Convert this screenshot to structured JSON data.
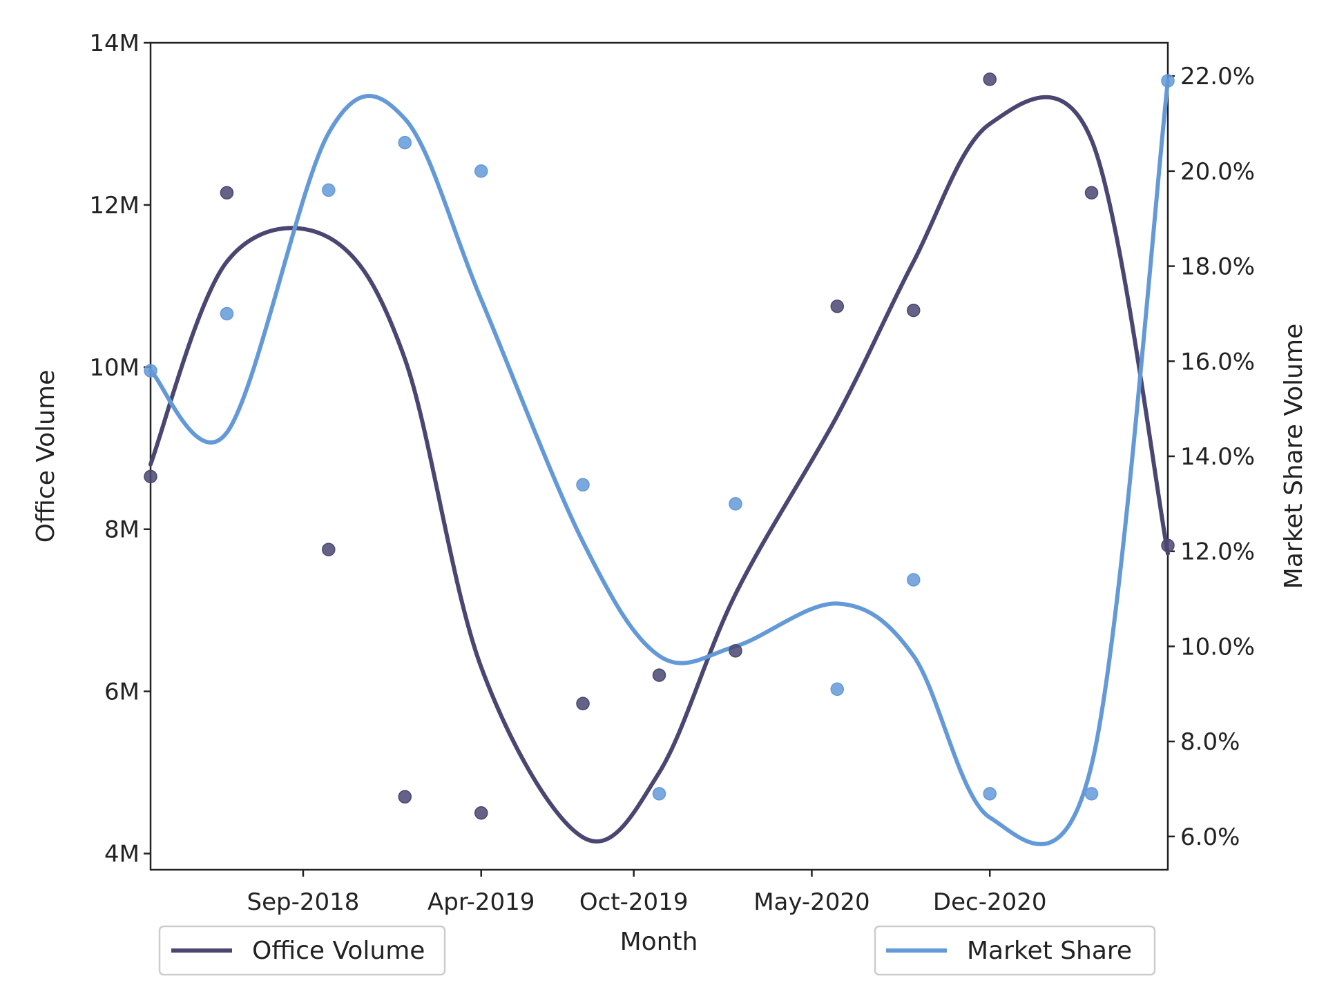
{
  "chart_data": {
    "type": "line",
    "title": "",
    "xlabel": "Month",
    "ylabel": "Office Volume",
    "y2label": "Market Share Volume",
    "x": [
      "Mar-2018",
      "Jun-2018",
      "Oct-2018",
      "Jan-2019",
      "Apr-2019",
      "Aug-2019",
      "Nov-2019",
      "Feb-2020",
      "Jun-2020",
      "Sep-2020",
      "Dec-2020",
      "Apr-2021",
      "Jul-2021"
    ],
    "xticks": [
      "Sep-2018",
      "Apr-2019",
      "Oct-2019",
      "May-2020",
      "Dec-2020"
    ],
    "yticks": [
      "4M",
      "6M",
      "8M",
      "10M",
      "12M",
      "14M"
    ],
    "y2ticks": [
      "6.0%",
      "8.0%",
      "10.0%",
      "12.0%",
      "14.0%",
      "16.0%",
      "18.0%",
      "20.0%",
      "22.0%"
    ],
    "ylim": [
      3800000,
      14000000
    ],
    "y2lim": [
      5.3,
      22.7
    ],
    "series": [
      {
        "name": "Office Volume",
        "axis": "left",
        "color": "#4a4672",
        "points": [
          8650000,
          12150000,
          7750000,
          4700000,
          4500000,
          5850000,
          6200000,
          6500000,
          10750000,
          10700000,
          13550000,
          12150000,
          7800000
        ],
        "smoothed": [
          8800000,
          11300000,
          11600000,
          10100000,
          6300000,
          4200000,
          5000000,
          7200000,
          9400000,
          11300000,
          13000000,
          12800000,
          7700000
        ]
      },
      {
        "name": "Market Share",
        "axis": "right",
        "color": "#6499d8",
        "points": [
          15.8,
          17.0,
          19.6,
          20.6,
          20.0,
          13.4,
          6.9,
          13.0,
          9.1,
          11.4,
          6.9,
          6.9,
          21.9
        ],
        "smoothed": [
          15.8,
          14.5,
          20.8,
          21.1,
          17.3,
          12.2,
          9.8,
          10.0,
          10.9,
          9.8,
          6.4,
          7.5,
          21.9
        ]
      }
    ],
    "legend": [
      {
        "label": "Office Volume",
        "placement": "bottom-left"
      },
      {
        "label": "Market Share",
        "placement": "bottom-right"
      }
    ],
    "grid": false
  }
}
